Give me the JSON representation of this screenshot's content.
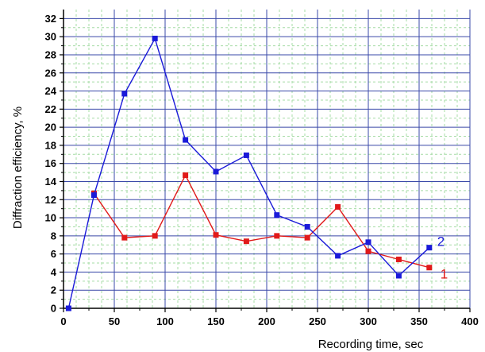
{
  "chart_data": {
    "type": "line",
    "xlabel": "Recording time, sec",
    "ylabel": "Diffraction efficiency, %",
    "xlim": [
      0,
      400
    ],
    "ylim": [
      0,
      33
    ],
    "x_major_ticks": [
      0,
      50,
      100,
      150,
      200,
      250,
      300,
      350,
      400
    ],
    "y_major_ticks": [
      0,
      2,
      4,
      6,
      8,
      10,
      12,
      14,
      16,
      18,
      20,
      22,
      24,
      26,
      28,
      30,
      32
    ],
    "x_minor_step": 12.5,
    "y_minor_step": 1,
    "grid": true,
    "colors": {
      "major_grid": "#3a48a8",
      "minor_grid": "#a6dca6",
      "axis": "#000000"
    },
    "series": [
      {
        "name": "1",
        "color": "#e11a1a",
        "x": [
          30,
          60,
          90,
          120,
          150,
          180,
          210,
          240,
          270,
          300,
          330,
          360
        ],
        "y": [
          12.7,
          7.8,
          8.0,
          14.7,
          8.1,
          7.4,
          8.0,
          7.8,
          11.2,
          6.3,
          5.4,
          4.5
        ]
      },
      {
        "name": "2",
        "color": "#1a1ad9",
        "x": [
          5,
          30,
          60,
          90,
          120,
          150,
          180,
          210,
          240,
          270,
          300,
          330,
          360
        ],
        "y": [
          0.0,
          12.5,
          23.7,
          29.8,
          18.6,
          15.1,
          16.9,
          10.3,
          9.0,
          5.8,
          7.3,
          3.6,
          6.7
        ]
      }
    ]
  }
}
